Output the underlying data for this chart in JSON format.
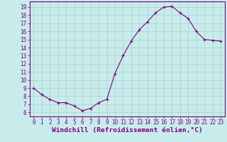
{
  "hours": [
    0,
    1,
    2,
    3,
    4,
    5,
    6,
    7,
    8,
    9,
    10,
    11,
    12,
    13,
    14,
    15,
    16,
    17,
    18,
    19,
    20,
    21,
    22,
    23
  ],
  "values": [
    9.0,
    8.2,
    7.6,
    7.2,
    7.2,
    6.8,
    6.2,
    6.5,
    7.2,
    7.6,
    10.8,
    13.0,
    14.8,
    16.2,
    17.2,
    18.3,
    19.0,
    19.1,
    18.3,
    17.6,
    16.0,
    15.0,
    14.9,
    14.8
  ],
  "line_color": "#7b007b",
  "marker": "+",
  "bg_color": "#c8ecec",
  "grid_color": "#a8cece",
  "axis_color": "#7b007b",
  "xlabel": "Windchill (Refroidissement éolien,°C)",
  "ylim": [
    5.5,
    19.7
  ],
  "xlim": [
    -0.5,
    23.5
  ],
  "yticks": [
    6,
    7,
    8,
    9,
    10,
    11,
    12,
    13,
    14,
    15,
    16,
    17,
    18,
    19
  ],
  "xticks": [
    0,
    1,
    2,
    3,
    4,
    5,
    6,
    7,
    8,
    9,
    10,
    11,
    12,
    13,
    14,
    15,
    16,
    17,
    18,
    19,
    20,
    21,
    22,
    23
  ],
  "font_color": "#7b007b",
  "tick_fontsize": 5.5,
  "label_fontsize": 6.8
}
